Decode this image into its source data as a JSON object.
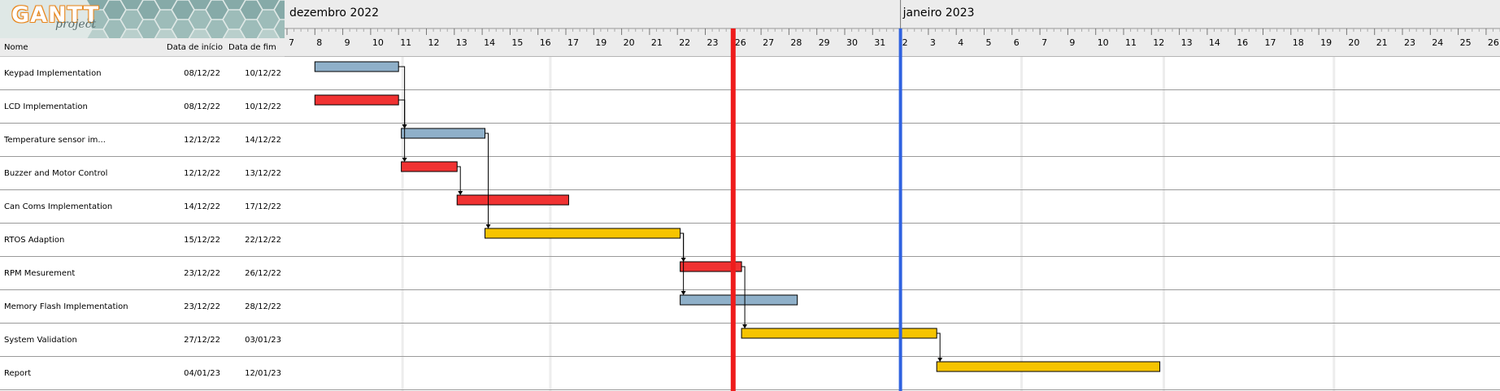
{
  "logo": {
    "brand": "GANTT",
    "sub": "project"
  },
  "table": {
    "headers": {
      "name": "Nome",
      "start": "Data de início",
      "end": "Data de fim"
    },
    "tasks": [
      {
        "name": "Keypad Implementation",
        "start": "08/12/22",
        "end": "10/12/22"
      },
      {
        "name": "LCD Implementation",
        "start": "08/12/22",
        "end": "10/12/22"
      },
      {
        "name": "Temperature sensor im...",
        "start": "12/12/22",
        "end": "14/12/22"
      },
      {
        "name": "Buzzer and Motor Control",
        "start": "12/12/22",
        "end": "13/12/22"
      },
      {
        "name": "Can Coms Implementation",
        "start": "14/12/22",
        "end": "17/12/22"
      },
      {
        "name": "RTOS Adaption",
        "start": "15/12/22",
        "end": "22/12/22"
      },
      {
        "name": "RPM Mesurement",
        "start": "23/12/22",
        "end": "26/12/22"
      },
      {
        "name": "Memory Flash Implementation",
        "start": "23/12/22",
        "end": "28/12/22"
      },
      {
        "name": "System Validation",
        "start": "27/12/22",
        "end": "03/01/23"
      },
      {
        "name": "Report",
        "start": "04/01/23",
        "end": "12/01/23"
      }
    ]
  },
  "timeline": {
    "months": [
      {
        "label": "dezembro 2022",
        "col": 0
      },
      {
        "label": "janeiro 2023",
        "col": 22
      }
    ],
    "days": [
      "7",
      "8",
      "9",
      "10",
      "11",
      "12",
      "13",
      "14",
      "15",
      "16",
      "17",
      "19",
      "20",
      "21",
      "22",
      "23",
      "26",
      "27",
      "28",
      "29",
      "30",
      "31",
      "2",
      "3",
      "4",
      "5",
      "6",
      "7",
      "9",
      "10",
      "11",
      "12",
      "13",
      "14",
      "16",
      "17",
      "18",
      "19",
      "20",
      "21",
      "23",
      "24",
      "25",
      "26",
      "2"
    ],
    "today_col": 16,
    "today_color": "#ee1c1c",
    "marker_col": 22,
    "marker_color": "#2f62e0"
  },
  "chart_data": {
    "type": "gantt",
    "colors": {
      "blue": "#8fb0c9",
      "red": "#f03232",
      "yellow": "#f6c400"
    },
    "bars": [
      {
        "task": "Keypad Implementation",
        "from": 1,
        "to": 4,
        "color": "blue"
      },
      {
        "task": "LCD Implementation",
        "from": 1,
        "to": 4,
        "color": "red"
      },
      {
        "task": "Temperature sensor im...",
        "from": 4.1,
        "to": 7.1,
        "color": "blue"
      },
      {
        "task": "Buzzer and Motor Control",
        "from": 4.1,
        "to": 6.1,
        "color": "red"
      },
      {
        "task": "Can Coms Implementation",
        "from": 6.1,
        "to": 10.1,
        "color": "red"
      },
      {
        "task": "RTOS Adaption",
        "from": 7.1,
        "to": 14.1,
        "color": "yellow"
      },
      {
        "task": "RPM Mesurement",
        "from": 14.1,
        "to": 16.3,
        "color": "red"
      },
      {
        "task": "Memory Flash Implementation",
        "from": 14.1,
        "to": 18.3,
        "color": "blue"
      },
      {
        "task": "System Validation",
        "from": 16.3,
        "to": 23.3,
        "color": "yellow"
      },
      {
        "task": "Report",
        "from": 23.3,
        "to": 31.3,
        "color": "yellow"
      }
    ],
    "dependencies": [
      [
        0,
        2
      ],
      [
        1,
        2
      ],
      [
        1,
        3
      ],
      [
        3,
        4
      ],
      [
        2,
        5
      ],
      [
        5,
        6
      ],
      [
        5,
        7
      ],
      [
        6,
        8
      ],
      [
        8,
        9
      ]
    ]
  }
}
